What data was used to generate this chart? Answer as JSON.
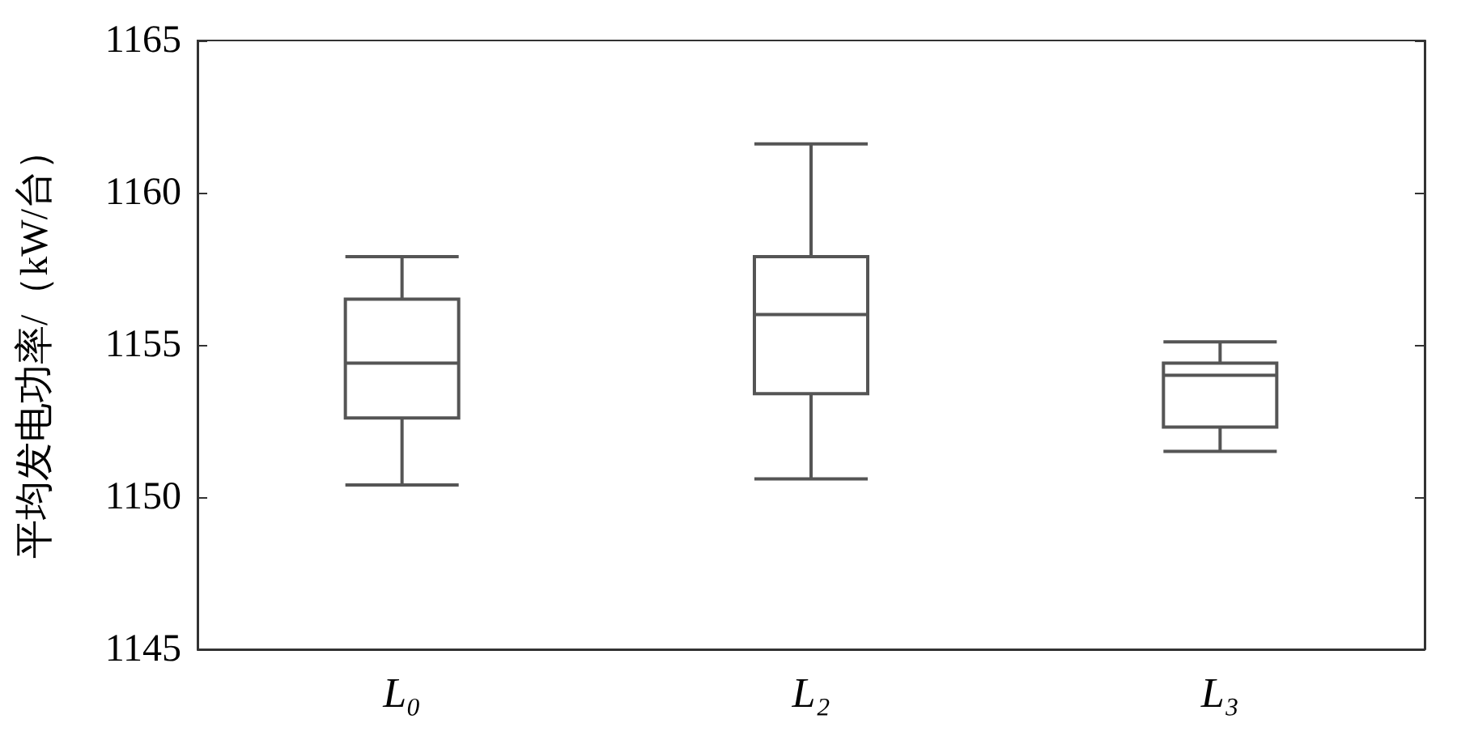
{
  "chart_data": {
    "type": "box",
    "ylabel": "平均发电功率/（kW/台）",
    "categories": [
      "L₀",
      "L₂",
      "L₃"
    ],
    "series": [
      {
        "color": "#555555",
        "boxes": [
          {
            "low": 1150.4,
            "q1": 1152.6,
            "median": 1154.4,
            "q3": 1156.5,
            "high": 1157.9
          },
          {
            "low": 1150.6,
            "q1": 1153.4,
            "median": 1156.0,
            "q3": 1157.9,
            "high": 1161.6
          },
          {
            "low": 1151.5,
            "q1": 1152.3,
            "median": 1154.0,
            "q3": 1154.4,
            "high": 1155.1
          }
        ]
      }
    ],
    "ylim": [
      1145,
      1165
    ],
    "yticks": [
      1145,
      1150,
      1155,
      1160,
      1165
    ],
    "grid": false
  }
}
